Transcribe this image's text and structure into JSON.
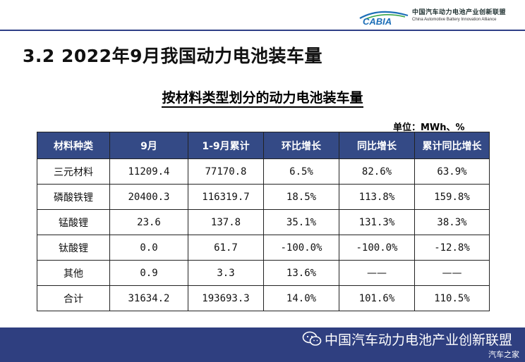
{
  "header": {
    "logo_mark": "CABIA",
    "org_name_cn": "中国汽车动力电池产业创新联盟",
    "org_name_en": "China Automotive Battery Innovation Alliance"
  },
  "slide_title": "3.2 2022年9月我国动力电池装车量",
  "table_title": "按材料类型划分的动力电池装车量",
  "unit_label": "单位：MWh、%",
  "table": {
    "columns": [
      "材料种类",
      "9月",
      "1-9月累计",
      "环比增长",
      "同比增长",
      "累计同比增长"
    ],
    "rows": [
      [
        "三元材料",
        "11209.4",
        "77170.8",
        "6.5%",
        "82.6%",
        "63.9%"
      ],
      [
        "磷酸铁锂",
        "20400.3",
        "116319.7",
        "18.5%",
        "113.8%",
        "159.8%"
      ],
      [
        "锰酸锂",
        "23.6",
        "137.8",
        "35.1%",
        "131.3%",
        "38.3%"
      ],
      [
        "钛酸锂",
        "0.0",
        "61.7",
        "-100.0%",
        "-100.0%",
        "-12.8%"
      ],
      [
        "其他",
        "0.9",
        "3.3",
        "13.6%",
        "——",
        "——"
      ],
      [
        "合计",
        "31634.2",
        "193693.3",
        "14.0%",
        "101.6%",
        "110.5%"
      ]
    ]
  },
  "footer": {
    "text": "中国汽车动力电池产业创新联盟",
    "icon": "wechat-icon",
    "watermark": "汽车之家"
  },
  "colors": {
    "header_bg": "#344a86",
    "footer_bg": "#2f3f80",
    "logo_blue": "#1d6fb8",
    "logo_green": "#3aa64a"
  }
}
